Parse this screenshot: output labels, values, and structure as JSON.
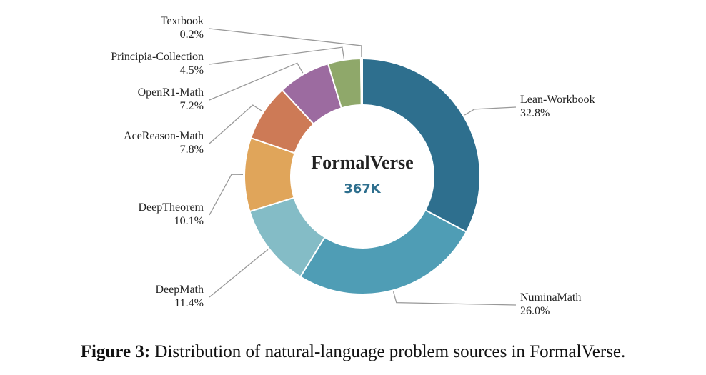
{
  "chart_data": {
    "type": "donut",
    "center_title": "FormalVerse",
    "center_value": "367K",
    "caption_label": "Figure 3:",
    "caption": "Distribution of natural-language problem sources in FormalVerse.",
    "categories": [
      "Lean-Workbook",
      "NuminaMath",
      "DeepMath",
      "DeepTheorem",
      "AceReason-Math",
      "OpenR1-Math",
      "Principia-Collection",
      "Textbook"
    ],
    "values": [
      32.8,
      26.0,
      11.4,
      10.1,
      7.8,
      7.2,
      4.5,
      0.2
    ],
    "value_labels": [
      "32.8%",
      "26.0%",
      "11.4%",
      "10.1%",
      "7.8%",
      "7.2%",
      "4.5%",
      "0.2%"
    ],
    "colors": [
      "#2e6f8e",
      "#4f9db5",
      "#84bcc6",
      "#e0a55a",
      "#cd7a56",
      "#9c6ba0",
      "#8fa86a",
      "#b4b4c6"
    ]
  }
}
